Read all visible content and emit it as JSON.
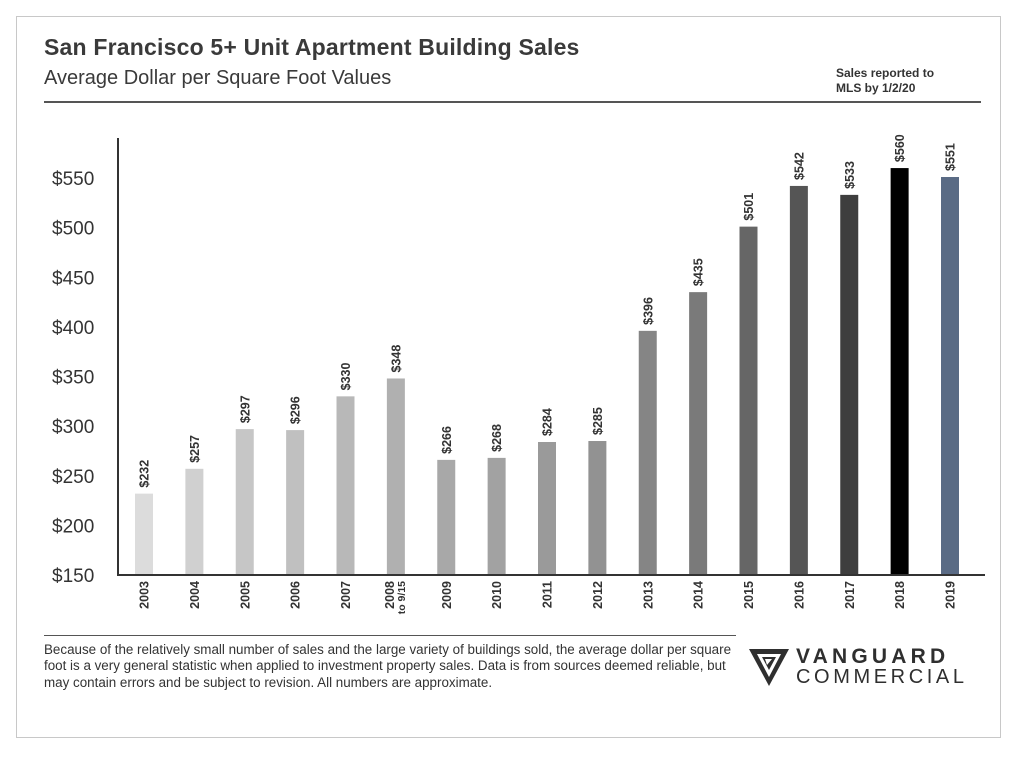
{
  "header": {
    "title": "San Francisco 5+ Unit Apartment Building Sales",
    "subtitle": "Average Dollar per Square Foot Values",
    "note_line1": "Sales reported to",
    "note_line2": "MLS by 1/2/20"
  },
  "footer": {
    "disclaimer": "Because of the relatively small number of sales and the large variety of buildings sold, the average dollar per square foot is a very general statistic when applied to investment property sales. Data is from sources deemed reliable, but may contain errors and be subject to revision. All numbers are approximate.",
    "logo_line1": "VANGUARD",
    "logo_line2": "COMMERCIAL"
  },
  "chart_data": {
    "type": "bar",
    "title": "San Francisco 5+ Unit Apartment Building Sales",
    "subtitle": "Average Dollar per Square Foot Values",
    "xlabel": "",
    "ylabel": "",
    "ylim": [
      150,
      580
    ],
    "yticks": [
      150,
      200,
      250,
      300,
      350,
      400,
      450,
      500,
      550
    ],
    "ytick_labels": [
      "$150",
      "$200",
      "$250",
      "$300",
      "$350",
      "$400",
      "$450",
      "$500",
      "$550"
    ],
    "grid": false,
    "categories": [
      "2003",
      "2004",
      "2005",
      "2006",
      "2007",
      "2008 to 9/15",
      "2009",
      "2010",
      "2011",
      "2012",
      "2013",
      "2014",
      "2015",
      "2016",
      "2017",
      "2018",
      "2019"
    ],
    "category_labels": [
      [
        "2003"
      ],
      [
        "2004"
      ],
      [
        "2005"
      ],
      [
        "2006"
      ],
      [
        "2007"
      ],
      [
        "2008",
        "to 9/15"
      ],
      [
        "2009"
      ],
      [
        "2010"
      ],
      [
        "2011"
      ],
      [
        "2012"
      ],
      [
        "2013"
      ],
      [
        "2014"
      ],
      [
        "2015"
      ],
      [
        "2016"
      ],
      [
        "2017"
      ],
      [
        "2018"
      ],
      [
        "2019"
      ]
    ],
    "values": [
      232,
      257,
      297,
      296,
      330,
      348,
      266,
      268,
      284,
      285,
      396,
      435,
      501,
      542,
      533,
      560,
      551
    ],
    "data_labels": [
      "$232",
      "$257",
      "$297",
      "$296",
      "$330",
      "$348",
      "$266",
      "$268",
      "$284",
      "$285",
      "$396",
      "$435",
      "$501",
      "$542",
      "$533",
      "$560",
      "$551"
    ],
    "colors": [
      "#dcdcdc",
      "#d0d0d0",
      "#c6c6c6",
      "#c0c0c0",
      "#b8b8b8",
      "#b0b0b0",
      "#a8a8a8",
      "#a2a2a2",
      "#9a9a9a",
      "#929292",
      "#858585",
      "#7a7a7a",
      "#666666",
      "#555555",
      "#3e3e3e",
      "#000000",
      "#5a6b85"
    ],
    "annotations": [
      "Sales reported to MLS by 1/2/20"
    ]
  }
}
